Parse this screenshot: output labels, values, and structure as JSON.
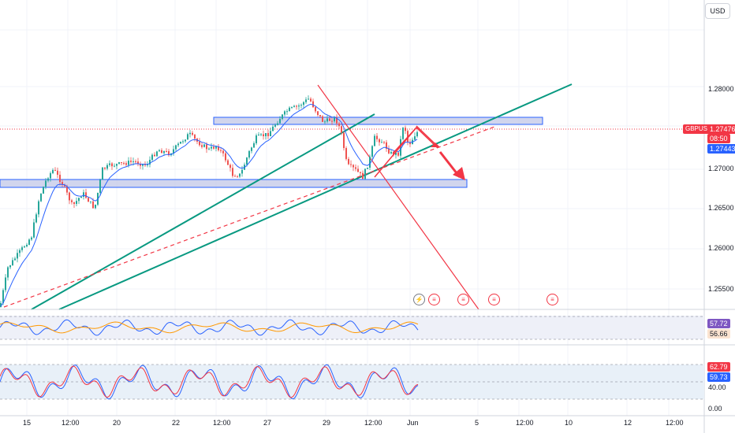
{
  "currency_button": "USD",
  "symbol": "GBPUSD",
  "price_tags": {
    "last": "1.27476",
    "countdown": "08:50",
    "bid": "1.27443"
  },
  "price_axis": [
    "1.28000",
    "1.27000",
    "1.26500",
    "1.26000",
    "1.25500"
  ],
  "indicator1": {
    "value_a": "57.72",
    "value_b": "56.66"
  },
  "indicator2": {
    "value_a": "62.79",
    "value_b": "59.73",
    "levels": [
      "40.00",
      "0.00"
    ]
  },
  "time_axis": [
    "15",
    "12:00",
    "20",
    "22",
    "12:00",
    "27",
    "29",
    "12:00",
    "Jun",
    "5",
    "12:00",
    "10",
    "12",
    "12:00"
  ],
  "colors": {
    "up": "#26a69a",
    "down": "#ef5350",
    "teal_line": "#089981",
    "red_line": "#f23645",
    "zone_fill": "#d6dcf5",
    "zone_border": "#2962ff",
    "ma": "#2962ff",
    "signal": "#ff9800"
  },
  "events": [
    "flash-icon",
    "us-flag-icon",
    "us-flag-icon",
    "us-flag-icon",
    "us-flag-icon"
  ]
}
